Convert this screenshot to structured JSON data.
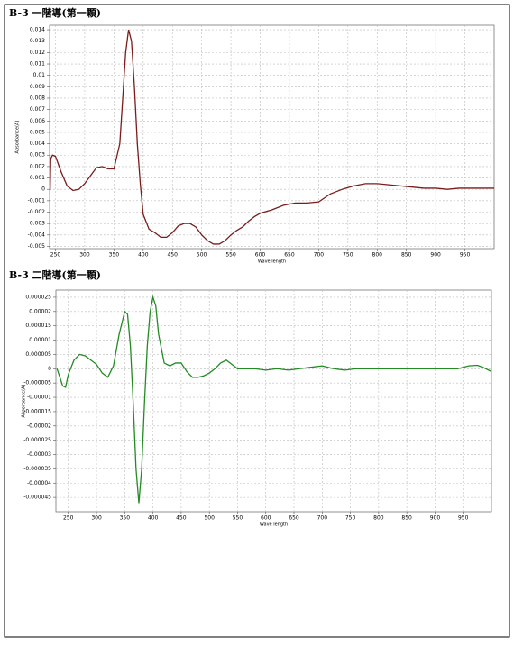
{
  "chart_data": [
    {
      "type": "line",
      "title": "B-3 一階導(第一顆)",
      "x_label": "Wave length",
      "y_label": "Absorbance(A)",
      "color": "#7a1c1c",
      "grid": true,
      "xlim": [
        240,
        1000
      ],
      "ylim": [
        -0.0052,
        0.0144
      ],
      "xticks": [
        250,
        300,
        350,
        400,
        450,
        500,
        550,
        600,
        650,
        700,
        750,
        800,
        850,
        900,
        950
      ],
      "yticks": [
        0.014,
        0.013,
        0.012,
        0.011,
        0.01,
        0.009,
        0.008,
        0.007,
        0.006,
        0.005,
        0.004,
        0.003,
        0.002,
        0.001,
        0,
        -0.001,
        -0.002,
        -0.003,
        -0.004,
        -0.005
      ],
      "x": [
        240,
        241,
        242,
        245,
        250,
        260,
        270,
        280,
        290,
        300,
        310,
        320,
        330,
        340,
        350,
        360,
        365,
        370,
        375,
        380,
        385,
        390,
        395,
        400,
        410,
        420,
        430,
        440,
        450,
        460,
        470,
        480,
        490,
        500,
        510,
        520,
        530,
        540,
        550,
        560,
        570,
        580,
        590,
        600,
        620,
        640,
        660,
        680,
        700,
        720,
        740,
        760,
        780,
        800,
        820,
        840,
        860,
        880,
        900,
        920,
        940,
        960,
        980,
        1000
      ],
      "values": [
        0,
        0,
        0.0027,
        0.003,
        0.0029,
        0.0015,
        0.0003,
        -0.0001,
        0,
        0.0005,
        0.0012,
        0.0019,
        0.002,
        0.0018,
        0.0018,
        0.004,
        0.008,
        0.012,
        0.014,
        0.013,
        0.009,
        0.004,
        0.0005,
        -0.0022,
        -0.0035,
        -0.0038,
        -0.0042,
        -0.0042,
        -0.0038,
        -0.0032,
        -0.003,
        -0.003,
        -0.0033,
        -0.004,
        -0.0045,
        -0.0048,
        -0.0048,
        -0.0045,
        -0.004,
        -0.0036,
        -0.0033,
        -0.0028,
        -0.0024,
        -0.0021,
        -0.0018,
        -0.0014,
        -0.0012,
        -0.0012,
        -0.0011,
        -0.0004,
        0,
        0.0003,
        0.0005,
        0.0005,
        0.0004,
        0.0003,
        0.0002,
        0.0001,
        0.0001,
        0,
        0.0001,
        0.0001,
        0.0001,
        0.0001
      ]
    },
    {
      "type": "line",
      "title": "B-3 二階導(第一顆)",
      "x_label": "Wave length",
      "y_label": "Absorbance(A)",
      "color": "#228b22",
      "grid": true,
      "xlim": [
        228,
        1000
      ],
      "ylim": [
        -5e-05,
        2.75e-05
      ],
      "xticks": [
        250,
        300,
        350,
        400,
        450,
        500,
        550,
        600,
        650,
        700,
        750,
        800,
        850,
        900,
        950
      ],
      "yticks": [
        2.5e-05,
        2e-05,
        1.5e-05,
        1e-05,
        5e-06,
        0,
        -5e-06,
        -1e-05,
        -1.5e-05,
        -2e-05,
        -2.5e-05,
        -3e-05,
        -3.5e-05,
        -4e-05,
        -4.5e-05
      ],
      "x": [
        230,
        235,
        240,
        245,
        250,
        260,
        270,
        280,
        290,
        300,
        310,
        320,
        330,
        340,
        350,
        355,
        360,
        365,
        370,
        375,
        380,
        385,
        390,
        395,
        400,
        405,
        410,
        420,
        430,
        440,
        450,
        460,
        470,
        480,
        490,
        500,
        510,
        520,
        530,
        540,
        550,
        560,
        580,
        600,
        620,
        640,
        660,
        680,
        700,
        720,
        740,
        760,
        800,
        850,
        900,
        940,
        960,
        975,
        985,
        995,
        1000
      ],
      "values": [
        0,
        -3e-06,
        -6e-06,
        -6.5e-06,
        -2e-06,
        3e-06,
        5e-06,
        4.5e-06,
        3e-06,
        1.5e-06,
        -1.5e-06,
        -3e-06,
        1e-06,
        1.2e-05,
        2e-05,
        1.9e-05,
        8e-06,
        -1.2e-05,
        -3.5e-05,
        -4.7e-05,
        -3.5e-05,
        -1.2e-05,
        8e-06,
        2e-05,
        2.5e-05,
        2.2e-05,
        1.2e-05,
        2e-06,
        1e-06,
        2e-06,
        2e-06,
        -1e-06,
        -3e-06,
        -3e-06,
        -2.5e-06,
        -1.5e-06,
        0,
        2e-06,
        3e-06,
        1.5e-06,
        0,
        0,
        0,
        -5e-07,
        0,
        -5e-07,
        0,
        5e-07,
        1e-06,
        0,
        -5e-07,
        0,
        0,
        0,
        0,
        0,
        1e-06,
        1.2e-06,
        5e-07,
        -5e-07,
        -1e-06
      ]
    }
  ]
}
